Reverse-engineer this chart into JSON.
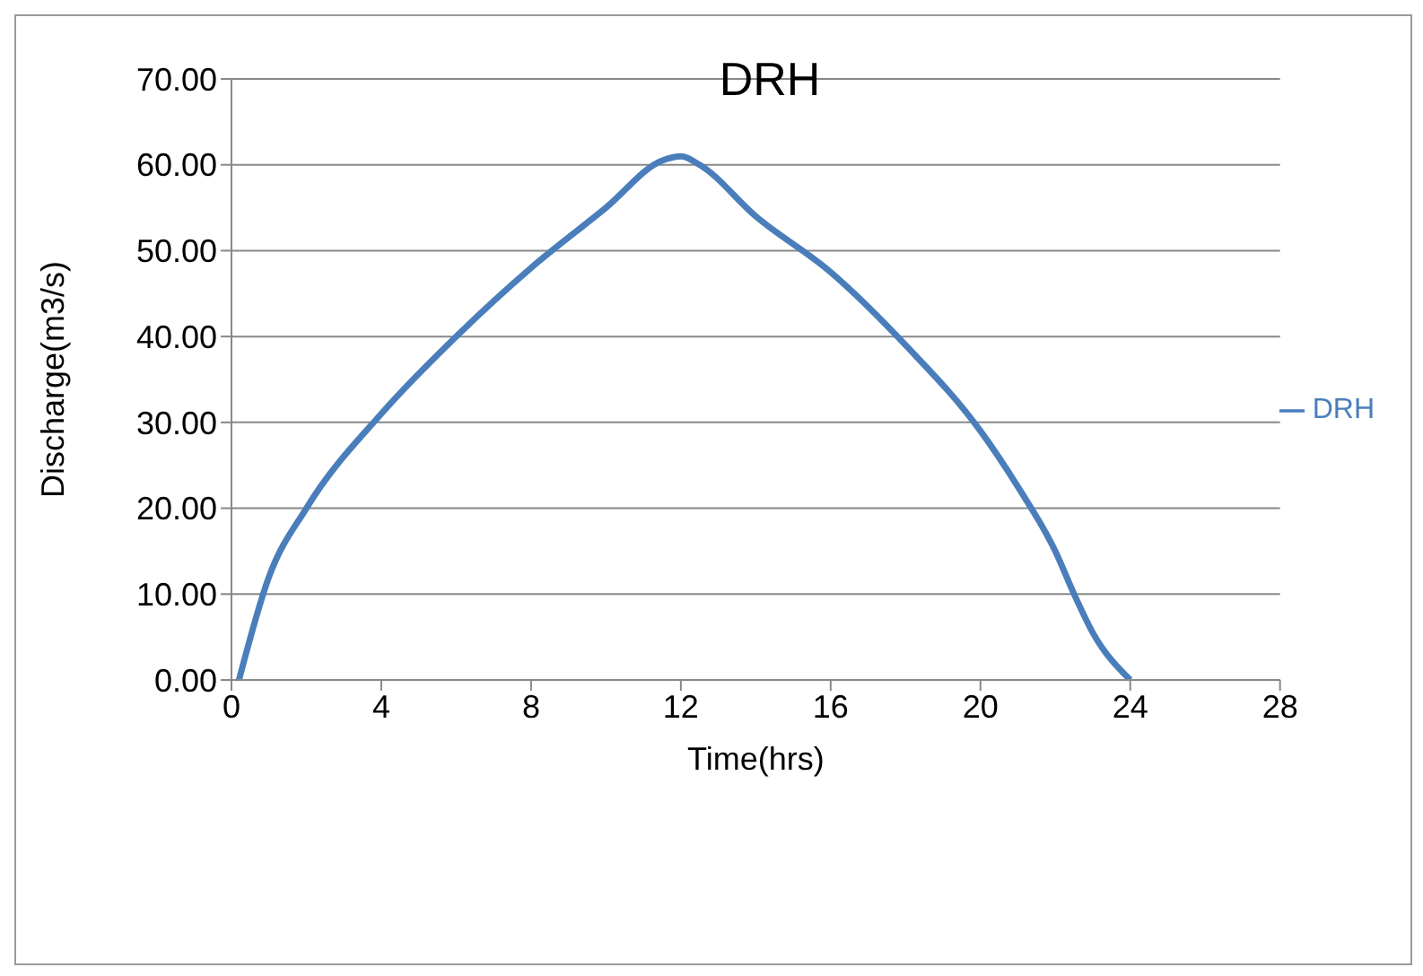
{
  "chart_data": {
    "type": "line",
    "title": "DRH",
    "xlabel": "Time(hrs)",
    "ylabel": "Discharge(m3/s)",
    "x": [
      0.2,
      1,
      2,
      4,
      6,
      8,
      10,
      11.5,
      12,
      12.5,
      14,
      16,
      18,
      20,
      21,
      22,
      22.5,
      23,
      24
    ],
    "series": [
      {
        "name": "DRH",
        "color": "#4a7ebb",
        "values": [
          0,
          12,
          20,
          31,
          40,
          48,
          55,
          60.5,
          61,
          60,
          54,
          47.5,
          39,
          29,
          22.5,
          15,
          10,
          5.5,
          0
        ]
      }
    ],
    "xlim": [
      0,
      28
    ],
    "xticks": [
      0,
      4,
      8,
      12,
      16,
      20,
      24,
      28
    ],
    "ylim": [
      0,
      70
    ],
    "yticks": [
      {
        "value": 0,
        "label": "0.00"
      },
      {
        "value": 10,
        "label": "10.00"
      },
      {
        "value": 20,
        "label": "20.00"
      },
      {
        "value": 30,
        "label": "30.00"
      },
      {
        "value": 40,
        "label": "40.00"
      },
      {
        "value": 50,
        "label": "50.00"
      },
      {
        "value": 60,
        "label": "60.00"
      },
      {
        "value": 70,
        "label": "70.00"
      }
    ],
    "grid": "y",
    "legend": "right",
    "marker": "none",
    "line_style": "solid"
  }
}
